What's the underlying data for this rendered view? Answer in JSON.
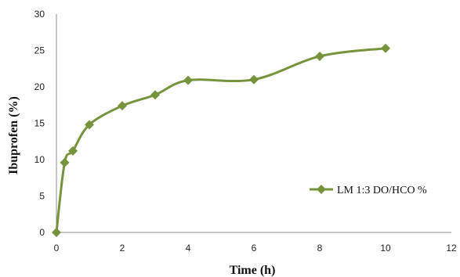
{
  "chart_data": {
    "type": "line",
    "title": "",
    "xlabel": "Time (h)",
    "ylabel": "Ibuprofen (%)",
    "xlim": [
      0,
      12
    ],
    "ylim": [
      0,
      30
    ],
    "xticks": [
      "0",
      "2",
      "4",
      "6",
      "8",
      "10",
      "12"
    ],
    "yticks": [
      "0",
      "5",
      "10",
      "15",
      "20",
      "25",
      "30"
    ],
    "grid": false,
    "legend_position": "right",
    "series": [
      {
        "name": "LM 1:3 DO/HCO %",
        "color": "#77933c",
        "marker": "diamond",
        "x": [
          0,
          0.25,
          0.5,
          1,
          2,
          3,
          4,
          6,
          8,
          10
        ],
        "y": [
          0,
          9.6,
          11.2,
          14.8,
          17.4,
          18.9,
          20.9,
          21.0,
          24.2,
          25.3
        ]
      }
    ]
  }
}
